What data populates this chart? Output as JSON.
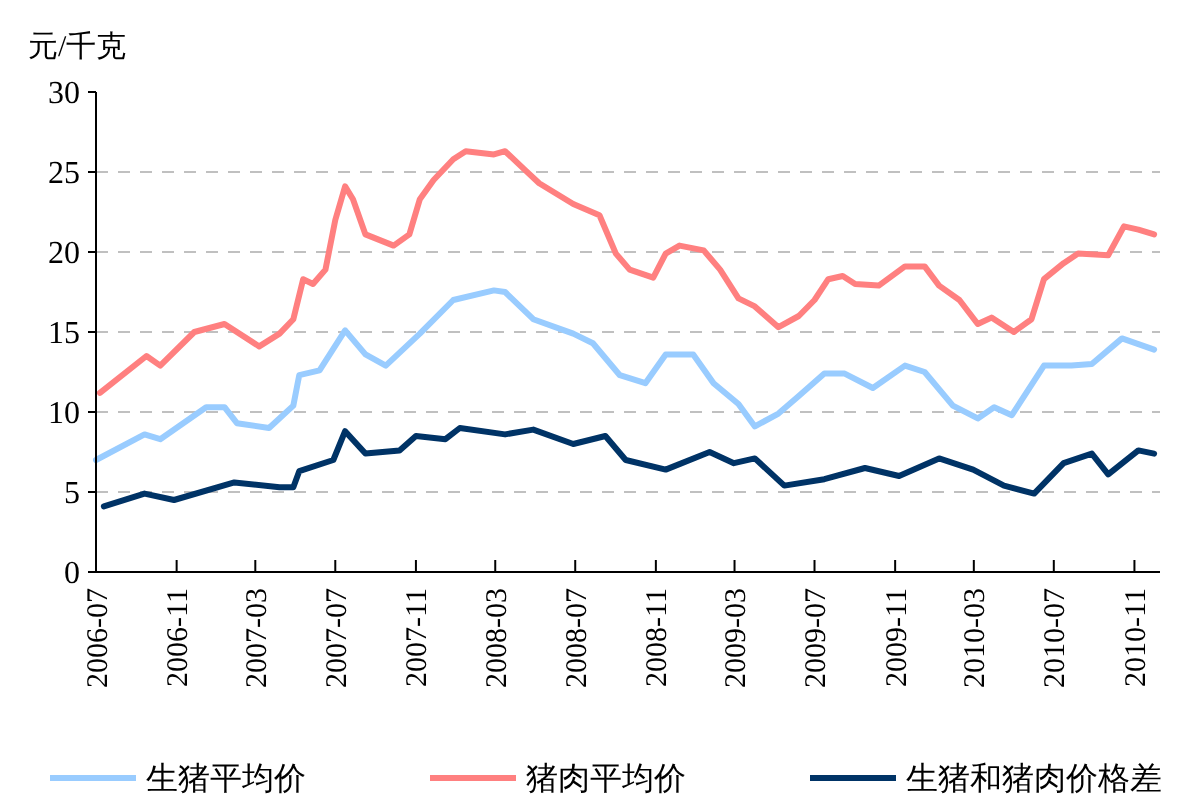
{
  "chart_data": {
    "type": "line",
    "ylabel": "元/千克",
    "xlim": [
      "2006-07-01",
      "2010-12-10"
    ],
    "xticks": [
      "2006-07",
      "2006-11",
      "2007-03",
      "2007-07",
      "2007-11",
      "2008-03",
      "2008-07",
      "2008-11",
      "2009-03",
      "2009-07",
      "2009-11",
      "2010-03",
      "2010-07",
      "2010-11"
    ],
    "ylim": [
      0,
      30
    ],
    "yticks": [
      0,
      5,
      10,
      15,
      20,
      25,
      30
    ],
    "grid": "y",
    "legend": "bottom",
    "marker": "none",
    "line_style": "solid",
    "series": [
      {
        "name": "生猪平均价",
        "color": "#99ccff",
        "x": [
          "2006-07-01",
          "2006-09-13",
          "2006-10-07",
          "2006-12-16",
          "2007-01-13",
          "2007-02-01",
          "2007-03-22",
          "2007-04-28",
          "2007-05-07",
          "2007-06-07",
          "2007-07-16",
          "2007-08-16",
          "2007-09-16",
          "2007-11-07",
          "2007-12-28",
          "2008-02-28",
          "2008-03-16",
          "2008-04-28",
          "2008-06-28",
          "2008-07-28",
          "2008-09-07",
          "2008-10-16",
          "2008-11-16",
          "2008-12-28",
          "2009-01-28",
          "2009-03-07",
          "2009-04-01",
          "2009-05-07",
          "2009-06-07",
          "2009-07-16",
          "2009-08-16",
          "2009-09-28",
          "2009-11-16",
          "2009-12-16",
          "2010-01-28",
          "2010-03-07",
          "2010-04-01",
          "2010-04-28",
          "2010-06-16",
          "2010-07-28",
          "2010-08-28",
          "2010-10-13",
          "2010-12-01"
        ],
        "values": [
          7,
          8.6,
          8.3,
          10.3,
          10.3,
          9.3,
          9,
          10.4,
          12.3,
          12.6,
          15.1,
          13.6,
          12.9,
          14.9,
          17,
          17.6,
          17.5,
          15.8,
          14.9,
          14.3,
          12.3,
          11.8,
          13.6,
          13.6,
          11.8,
          10.5,
          9.1,
          9.9,
          11,
          12.4,
          12.4,
          11.5,
          12.9,
          12.5,
          10.4,
          9.6,
          10.3,
          9.8,
          12.9,
          12.9,
          13,
          14.6,
          13.9
        ]
      },
      {
        "name": "猪肉平均价",
        "color": "#ff8080",
        "x": [
          "2006-07-07",
          "2006-09-16",
          "2006-10-07",
          "2006-11-28",
          "2007-01-13",
          "2007-03-07",
          "2007-04-07",
          "2007-04-28",
          "2007-05-13",
          "2007-05-28",
          "2007-06-16",
          "2007-07-01",
          "2007-07-16",
          "2007-07-28",
          "2007-08-16",
          "2007-09-28",
          "2007-10-22",
          "2007-11-07",
          "2007-11-28",
          "2007-12-28",
          "2008-01-16",
          "2008-02-28",
          "2008-03-16",
          "2008-04-16",
          "2008-05-07",
          "2008-06-28",
          "2008-08-07",
          "2008-09-01",
          "2008-09-22",
          "2008-10-28",
          "2008-11-16",
          "2008-12-07",
          "2009-01-13",
          "2009-02-07",
          "2009-03-07",
          "2009-04-01",
          "2009-05-07",
          "2009-06-07",
          "2009-07-01",
          "2009-07-22",
          "2009-08-13",
          "2009-09-01",
          "2009-10-07",
          "2009-11-16",
          "2009-12-16",
          "2010-01-07",
          "2010-02-07",
          "2010-03-07",
          "2010-03-28",
          "2010-05-01",
          "2010-05-28",
          "2010-06-16",
          "2010-07-16",
          "2010-08-07",
          "2010-09-22",
          "2010-10-16",
          "2010-11-07",
          "2010-12-01"
        ],
        "values": [
          11.2,
          13.5,
          12.9,
          15,
          15.5,
          14.1,
          14.9,
          15.8,
          18.3,
          18,
          18.9,
          22,
          24.1,
          23.3,
          21.1,
          20.4,
          21.1,
          23.3,
          24.5,
          25.8,
          26.3,
          26.1,
          26.3,
          25.1,
          24.3,
          23,
          22.3,
          19.9,
          18.9,
          18.4,
          19.9,
          20.4,
          20.1,
          18.9,
          17.1,
          16.6,
          15.3,
          16,
          17,
          18.3,
          18.5,
          18,
          17.9,
          19.1,
          19.1,
          17.9,
          17,
          15.5,
          15.9,
          15,
          15.8,
          18.3,
          19.3,
          19.9,
          19.8,
          21.6,
          21.4,
          21.1
        ]
      },
      {
        "name": "生猪和猪肉价格差",
        "color": "#003366",
        "x": [
          "2006-07-13",
          "2006-09-13",
          "2006-10-28",
          "2007-01-28",
          "2007-04-07",
          "2007-04-28",
          "2007-05-07",
          "2007-06-28",
          "2007-07-16",
          "2007-08-16",
          "2007-10-07",
          "2007-11-01",
          "2007-12-16",
          "2008-01-07",
          "2008-03-16",
          "2008-04-28",
          "2008-06-28",
          "2008-08-16",
          "2008-09-16",
          "2008-11-16",
          "2009-01-22",
          "2009-02-28",
          "2009-04-01",
          "2009-05-16",
          "2009-07-16",
          "2009-09-16",
          "2009-11-07",
          "2010-01-07",
          "2010-02-28",
          "2010-04-16",
          "2010-06-01",
          "2010-07-16",
          "2010-08-28",
          "2010-09-22",
          "2010-11-07",
          "2010-12-01"
        ],
        "values": [
          4.1,
          4.9,
          4.5,
          5.6,
          5.3,
          5.3,
          6.3,
          7,
          8.8,
          7.4,
          7.6,
          8.5,
          8.3,
          9,
          8.6,
          8.9,
          8,
          8.5,
          7,
          6.4,
          7.5,
          6.8,
          7.1,
          5.4,
          5.8,
          6.5,
          6,
          7.1,
          6.4,
          5.4,
          4.9,
          6.8,
          7.4,
          6.1,
          7.6,
          7.4
        ]
      }
    ]
  }
}
